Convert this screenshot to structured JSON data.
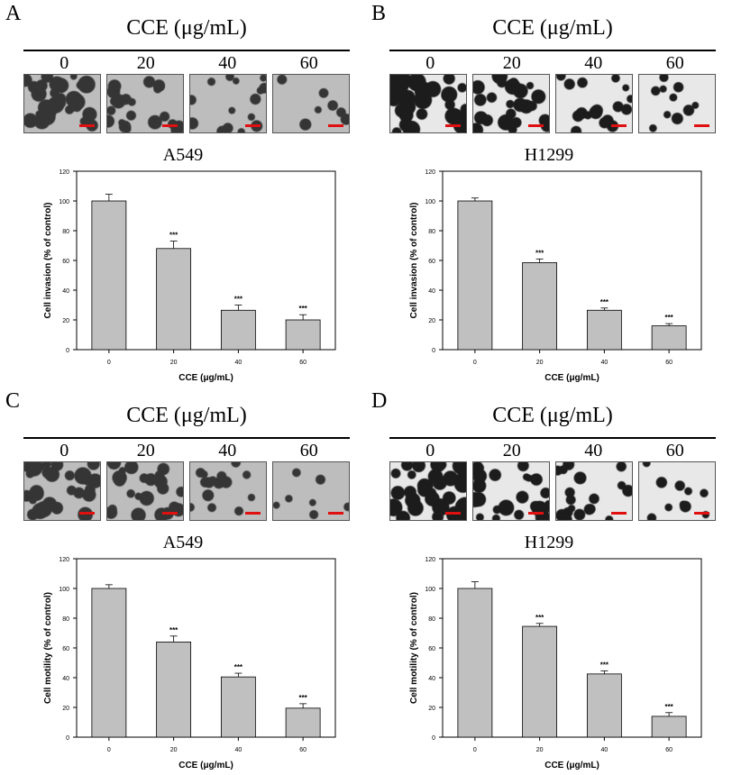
{
  "chart_data": [
    {
      "panel": "A",
      "type": "bar",
      "header": "CCE (μg/mL)",
      "doses": [
        "0",
        "20",
        "40",
        "60"
      ],
      "title": "A549",
      "xlabel": "CCE (μg/mL)",
      "ylabel": "Cell invasion (% of control)",
      "categories": [
        "0",
        "20",
        "40",
        "60"
      ],
      "values": [
        100,
        68,
        26.5,
        20
      ],
      "errors": [
        4.5,
        5,
        3.5,
        3.5
      ],
      "annotations": [
        "",
        "***",
        "***",
        "***"
      ],
      "ylim": [
        0,
        120
      ],
      "yticks": [
        0,
        20,
        40,
        60,
        80,
        100,
        120
      ],
      "image_tone": 0.42,
      "colors": {
        "bar": "#c0c0c0",
        "image_light": "#bdbdbd",
        "image_dark": "#353535"
      }
    },
    {
      "panel": "B",
      "type": "bar",
      "header": "CCE (μg/mL)",
      "doses": [
        "0",
        "20",
        "40",
        "60"
      ],
      "title": "H1299",
      "xlabel": "CCE (μg/mL)",
      "ylabel": "Cell invasion (% of control)",
      "categories": [
        "0",
        "20",
        "40",
        "60"
      ],
      "values": [
        100,
        58.5,
        26.5,
        16
      ],
      "errors": [
        2,
        2.5,
        1.5,
        1.5
      ],
      "annotations": [
        "",
        "***",
        "***",
        "***"
      ],
      "ylim": [
        0,
        120
      ],
      "yticks": [
        0,
        20,
        40,
        60,
        80,
        100,
        120
      ],
      "image_tone": 0.7,
      "colors": {
        "bar": "#c0c0c0",
        "image_light": "#e8e8e8",
        "image_dark": "#1c1c1c"
      }
    },
    {
      "panel": "C",
      "type": "bar",
      "header": "CCE (μg/mL)",
      "doses": [
        "0",
        "20",
        "40",
        "60"
      ],
      "title": "A549",
      "xlabel": "CCE (μg/mL)",
      "ylabel": "Cell motility (% of control)",
      "categories": [
        "0",
        "20",
        "40",
        "60"
      ],
      "values": [
        100,
        64,
        40.5,
        19.5
      ],
      "errors": [
        2.5,
        4,
        2.5,
        3
      ],
      "annotations": [
        "",
        "***",
        "***",
        "***"
      ],
      "ylim": [
        0,
        120
      ],
      "yticks": [
        0,
        20,
        40,
        60,
        80,
        100,
        120
      ],
      "image_tone": 0.42,
      "colors": {
        "bar": "#c0c0c0",
        "image_light": "#bdbdbd",
        "image_dark": "#353535"
      }
    },
    {
      "panel": "D",
      "type": "bar",
      "header": "CCE (μg/mL)",
      "doses": [
        "0",
        "20",
        "40",
        "60"
      ],
      "title": "H1299",
      "xlabel": "CCE (μg/mL)",
      "ylabel": "Cell motility (% of control)",
      "categories": [
        "0",
        "20",
        "40",
        "60"
      ],
      "values": [
        100,
        74.5,
        42.5,
        14
      ],
      "errors": [
        4.5,
        2,
        2,
        2.5
      ],
      "annotations": [
        "",
        "***",
        "***",
        "***"
      ],
      "ylim": [
        0,
        120
      ],
      "yticks": [
        0,
        20,
        40,
        60,
        80,
        100,
        120
      ],
      "image_tone": 0.7,
      "colors": {
        "bar": "#c0c0c0",
        "image_light": "#e8e8e8",
        "image_dark": "#1c1c1c"
      }
    }
  ]
}
